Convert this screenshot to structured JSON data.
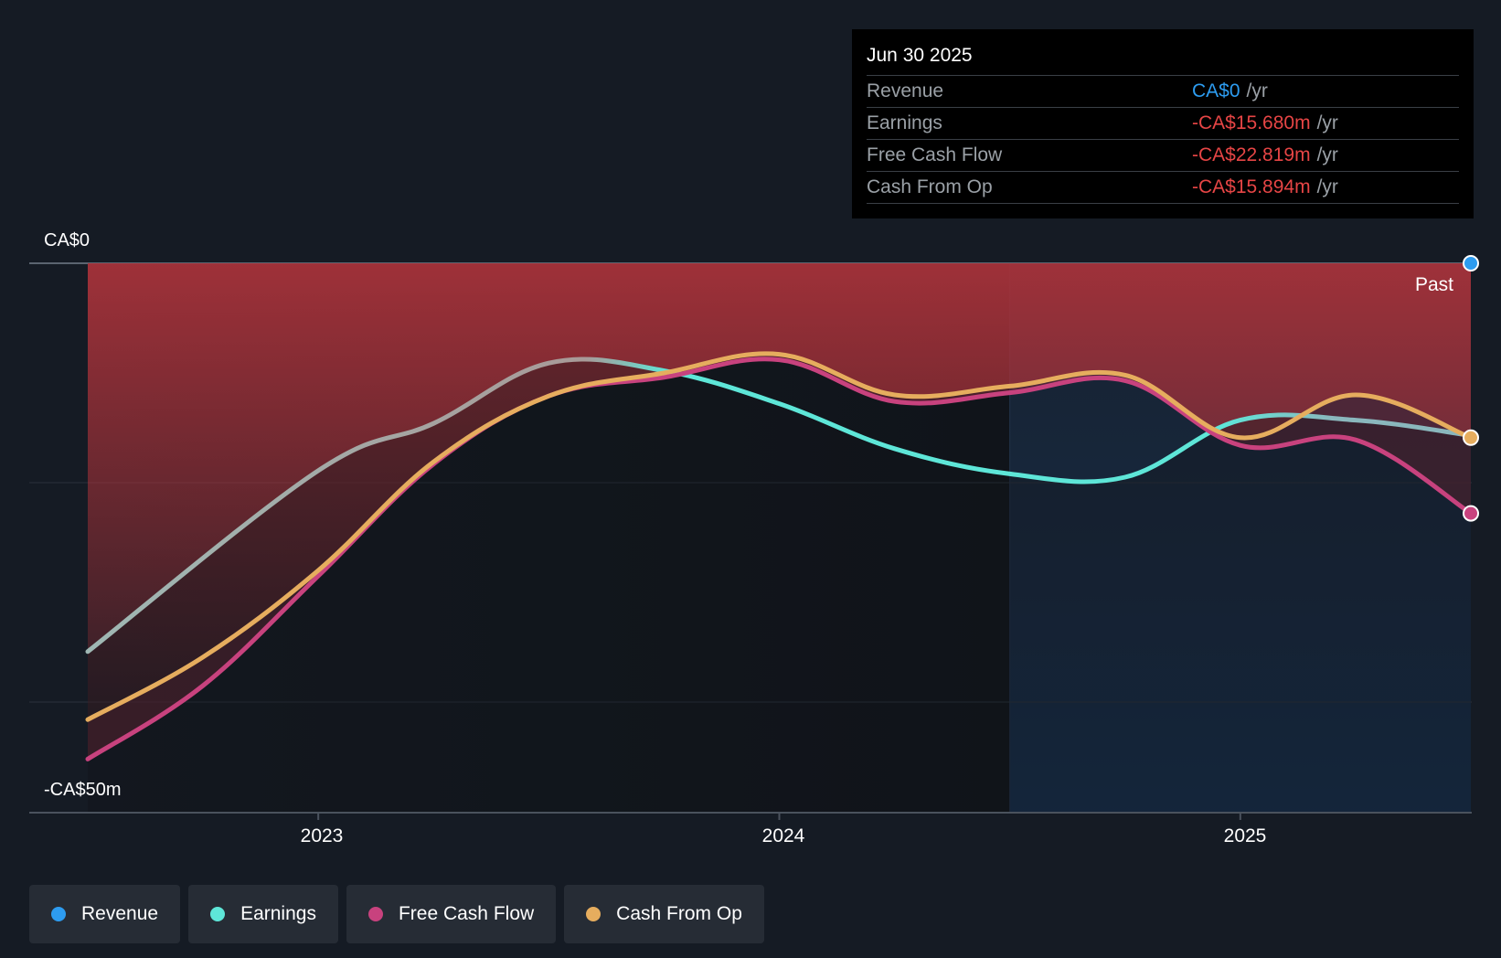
{
  "tooltip": {
    "date": "Jun 30 2025",
    "rows": [
      {
        "label": "Revenue",
        "value": "CA$0",
        "unit": "/yr"
      },
      {
        "label": "Earnings",
        "value": "-CA$15.680m",
        "unit": "/yr"
      },
      {
        "label": "Free Cash Flow",
        "value": "-CA$22.819m",
        "unit": "/yr"
      },
      {
        "label": "Cash From Op",
        "value": "-CA$15.894m",
        "unit": "/yr"
      }
    ]
  },
  "axis": {
    "y_top_label": "CA$0",
    "y_bottom_label": "-CA$50m",
    "past_label": "Past"
  },
  "colors": {
    "revenue": "#2d9cf0",
    "earnings": "#5ee6d8",
    "free_cash_flow": "#c8427e",
    "cash_from_op": "#e6ad5e",
    "negative_fill": "#a6323a",
    "background": "#151b24"
  },
  "chart_data": {
    "type": "line",
    "title": "",
    "xlabel": "",
    "ylabel": "",
    "x_domain": [
      2022.5,
      2025.5
    ],
    "ylim": [
      -50,
      0
    ],
    "grid": true,
    "x_ticks": [
      {
        "value": 2023,
        "label": "2023"
      },
      {
        "value": 2024,
        "label": "2024"
      },
      {
        "value": 2025,
        "label": "2025"
      }
    ],
    "y_gridlines": [
      0,
      -20,
      -40
    ],
    "past_region_start": 2024.5,
    "series": [
      {
        "name": "Revenue",
        "x": [
          2022.5,
          2023.0,
          2023.5,
          2024.0,
          2024.5,
          2025.0,
          2025.5
        ],
        "y": [
          0,
          0,
          0,
          0,
          0,
          0,
          0
        ]
      },
      {
        "name": "Earnings",
        "x": [
          2022.5,
          2023.0,
          2023.25,
          2023.5,
          2023.75,
          2024.0,
          2024.25,
          2024.5,
          2024.75,
          2025.0,
          2025.25,
          2025.5
        ],
        "y": [
          -35.4,
          -18.9,
          -14.6,
          -9.1,
          -9.8,
          -12.8,
          -16.9,
          -19.2,
          -19.5,
          -14.3,
          -14.3,
          -15.7
        ]
      },
      {
        "name": "Free Cash Flow",
        "x": [
          2022.5,
          2022.75,
          2023.0,
          2023.25,
          2023.5,
          2023.75,
          2024.0,
          2024.25,
          2024.5,
          2024.75,
          2025.0,
          2025.25,
          2025.5
        ],
        "y": [
          -45.2,
          -38.5,
          -28.5,
          -18.3,
          -12.1,
          -10.4,
          -8.8,
          -12.6,
          -11.8,
          -10.7,
          -16.6,
          -16.1,
          -22.8
        ]
      },
      {
        "name": "Cash From Op",
        "x": [
          2022.5,
          2022.75,
          2023.0,
          2023.25,
          2023.5,
          2023.75,
          2024.0,
          2024.25,
          2024.5,
          2024.75,
          2025.0,
          2025.25,
          2025.5
        ],
        "y": [
          -41.6,
          -35.9,
          -28.0,
          -18.1,
          -12.1,
          -10.0,
          -8.3,
          -12.0,
          -11.2,
          -10.2,
          -15.9,
          -12.0,
          -15.9
        ]
      }
    ]
  },
  "legend": [
    {
      "label": "Revenue",
      "color_key": "revenue"
    },
    {
      "label": "Earnings",
      "color_key": "earnings"
    },
    {
      "label": "Free Cash Flow",
      "color_key": "free_cash_flow"
    },
    {
      "label": "Cash From Op",
      "color_key": "cash_from_op"
    }
  ]
}
